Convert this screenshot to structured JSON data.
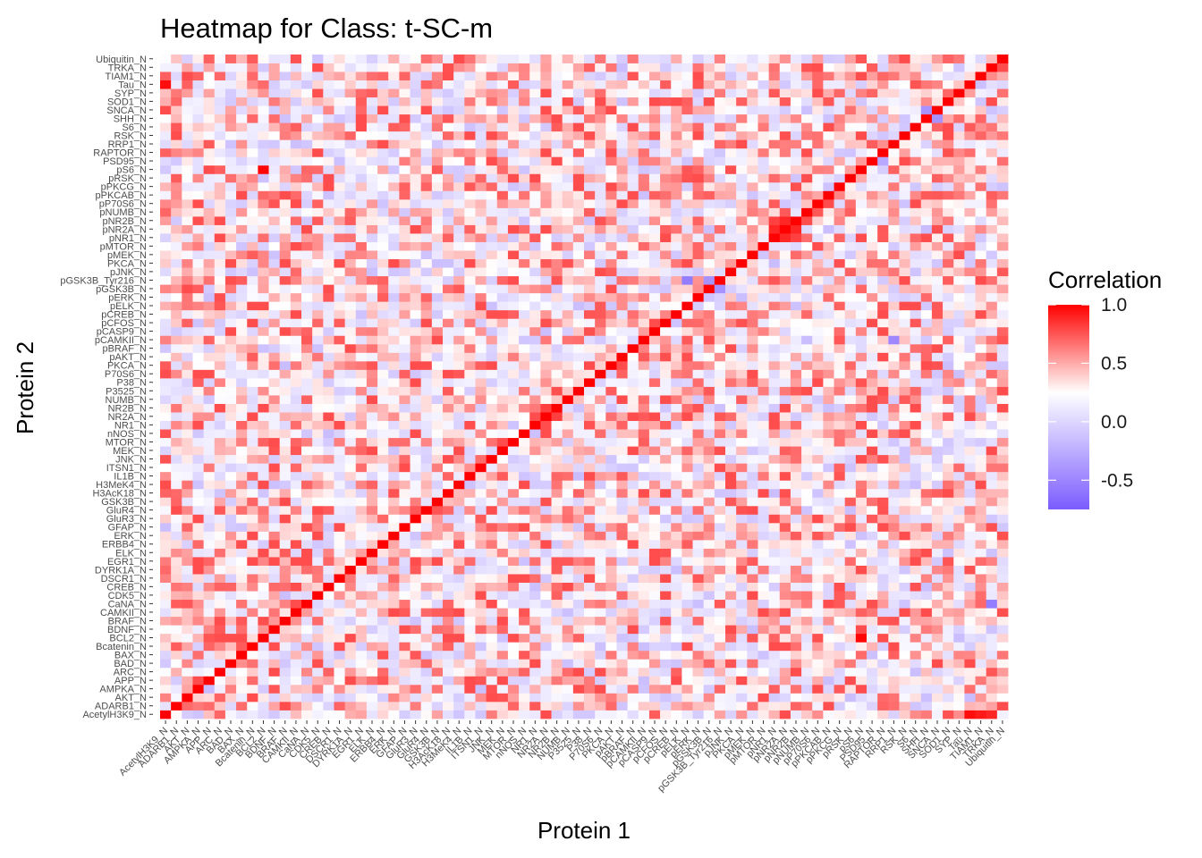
{
  "chart_data": {
    "type": "heatmap",
    "title": "Heatmap for Class: t-SC-m",
    "xlabel": "Protein 1",
    "ylabel": "Protein 2",
    "proteins": [
      "AcetylH3K9_N",
      "ADARB1_N",
      "AKT_N",
      "AMPKA_N",
      "APP_N",
      "ARC_N",
      "BAD_N",
      "BAX_N",
      "Bcatenin_N",
      "BCL2_N",
      "BDNF_N",
      "BRAF_N",
      "CAMKII_N",
      "CaNA_N",
      "CDK5_N",
      "CREB_N",
      "DSCR1_N",
      "DYRK1A_N",
      "EGR1_N",
      "ELK_N",
      "ERBB4_N",
      "ERK_N",
      "GFAP_N",
      "GluR3_N",
      "GluR4_N",
      "GSK3B_N",
      "H3AcK18_N",
      "H3MeK4_N",
      "IL1B_N",
      "ITSN1_N",
      "JNK_N",
      "MEK_N",
      "MTOR_N",
      "nNOS_N",
      "NR1_N",
      "NR2A_N",
      "NR2B_N",
      "NUMB_N",
      "P3525_N",
      "P38_N",
      "P70S6_N",
      "PKCA_N",
      "pAKT_N",
      "pBRAF_N",
      "pCAMKII_N",
      "pCASP9_N",
      "pCFOS_N",
      "pCREB_N",
      "pELK_N",
      "pERK_N",
      "pGSK3B_N",
      "pGSK3B_Tyr216_N",
      "pJNK_N",
      "PKCA_N",
      "pMEK_N",
      "pMTOR_N",
      "pNR1_N",
      "pNR2A_N",
      "pNR2B_N",
      "pNUMB_N",
      "pP70S6_N",
      "pPKCAB_N",
      "pPKCG_N",
      "pRSK_N",
      "pS6_N",
      "PSD95_N",
      "RAPTOR_N",
      "RRP1_N",
      "RSK_N",
      "S6_N",
      "SHH_N",
      "SNCA_N",
      "SOD1_N",
      "SYP_N",
      "Tau_N",
      "TIAM1_N",
      "TRKA_N",
      "Ubiquitin_N"
    ],
    "value_range": [
      -0.75,
      1.0
    ],
    "color_scale": {
      "low": "#7b5cff",
      "mid": "#ffffff",
      "high": "#ff0000"
    },
    "legend": {
      "title": "Correlation",
      "position": "right",
      "breaks": [
        1.0,
        0.5,
        0.0,
        -0.5
      ],
      "labels": [
        "1.0",
        "0.5",
        "0.0",
        "-0.5"
      ]
    },
    "diagonal_value": 1.0,
    "strong_pairs": [
      {
        "x": "AcetylH3K9_N",
        "y": "Tau_N",
        "value": 0.95
      },
      {
        "x": "Tau_N",
        "y": "AcetylH3K9_N",
        "value": 0.95
      },
      {
        "x": "BCL2_N",
        "y": "pS6_N",
        "value": 0.98
      },
      {
        "x": "pS6_N",
        "y": "BCL2_N",
        "value": 0.98
      },
      {
        "x": "TIAM1_N",
        "y": "AcetylH3K9_N",
        "value": 0.9
      },
      {
        "x": "ARC_N",
        "y": "TIAM1_N",
        "value": 0.6
      },
      {
        "x": "pNR1_N",
        "y": "pNR2A_N",
        "value": 0.85
      },
      {
        "x": "pNR2A_N",
        "y": "pNR1_N",
        "value": 0.85
      },
      {
        "x": "pNR2A_N",
        "y": "pNR2B_N",
        "value": 0.85
      },
      {
        "x": "pNR2B_N",
        "y": "pNR2A_N",
        "value": 0.85
      },
      {
        "x": "pNR1_N",
        "y": "pNR2B_N",
        "value": 0.75
      },
      {
        "x": "pNR2B_N",
        "y": "pNR1_N",
        "value": 0.75
      },
      {
        "x": "NR1_N",
        "y": "NR2A_N",
        "value": 0.7
      },
      {
        "x": "NR2A_N",
        "y": "NR1_N",
        "value": 0.7
      },
      {
        "x": "NR2A_N",
        "y": "NR2B_N",
        "value": 0.75
      },
      {
        "x": "NR2B_N",
        "y": "NR2A_N",
        "value": 0.75
      },
      {
        "x": "pNR1_N",
        "y": "NR2A_N",
        "value": 0.7
      },
      {
        "x": "pNR2A_N",
        "y": "NR2B_N",
        "value": 0.7
      },
      {
        "x": "NR2A_N",
        "y": "pNR2A_N",
        "value": 0.7
      },
      {
        "x": "NR1_N",
        "y": "pNR1_N",
        "value": 0.65
      },
      {
        "x": "pNR1_N",
        "y": "Bcatenin_N",
        "value": 0.7
      },
      {
        "x": "pNR2A_N",
        "y": "Bcatenin_N",
        "value": 0.7
      },
      {
        "x": "pELK_N",
        "y": "pGSK3B_Tyr216_N",
        "value": -0.6
      },
      {
        "x": "pGSK3B_N",
        "y": "pGSK3B_Tyr216_N",
        "value": -0.5
      },
      {
        "x": "pGSK3B_Tyr216_N",
        "y": "pGSK3B_N",
        "value": -0.5
      },
      {
        "x": "SNCA_N",
        "y": "SHH_N",
        "value": -0.5
      },
      {
        "x": "SHH_N",
        "y": "SNCA_N",
        "value": -0.5
      },
      {
        "x": "RAPTOR_N",
        "y": "PSD95_N",
        "value": -0.4
      },
      {
        "x": "RRP1_N",
        "y": "pCAMKII_N",
        "value": -0.55
      },
      {
        "x": "TRKA_N",
        "y": "CaNA_N",
        "value": -0.6
      },
      {
        "x": "TRKA_N",
        "y": "AcetylH3K9_N",
        "value": 0.85
      },
      {
        "x": "ARC_N",
        "y": "AcetylH3K9_N",
        "value": 0.6
      },
      {
        "x": "Ubiquitin_N",
        "y": "TRKA_N",
        "value": 0.7
      }
    ]
  }
}
